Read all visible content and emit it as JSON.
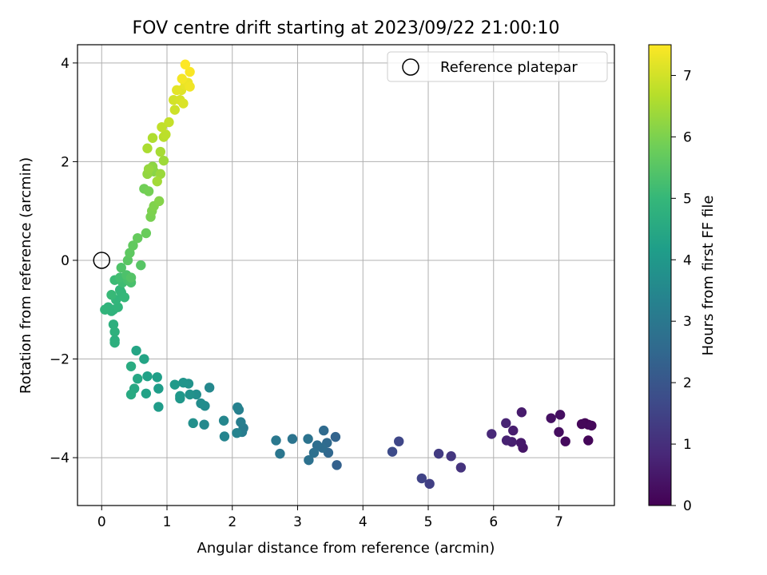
{
  "chart_data": {
    "type": "scatter",
    "title": "FOV centre drift starting at 2023/09/22 21:00:10",
    "xlabel": "Angular distance from reference (arcmin)",
    "ylabel": "Rotation from reference (arcmin)",
    "xlim": [
      -0.37,
      7.85
    ],
    "ylim": [
      -4.97,
      4.37
    ],
    "xticks": [
      0,
      1,
      2,
      3,
      4,
      5,
      6,
      7
    ],
    "xtick_labels": [
      "0",
      "1",
      "2",
      "3",
      "4",
      "5",
      "6",
      "7"
    ],
    "yticks": [
      4,
      2,
      0,
      -2,
      -4
    ],
    "ytick_labels": [
      "4",
      "2",
      "0",
      "−2",
      "−4"
    ],
    "grid": true,
    "legend": {
      "position": "top-right",
      "entries": [
        "Reference platepar"
      ]
    },
    "reference_point": {
      "x": 0,
      "y": 0
    },
    "colorbar": {
      "label": "Hours from first FF file",
      "range": [
        0,
        7.5
      ],
      "ticks": [
        0,
        1,
        2,
        3,
        4,
        5,
        6,
        7
      ],
      "tick_labels": [
        "0",
        "1",
        "2",
        "3",
        "4",
        "5",
        "6",
        "7"
      ],
      "colormap": [
        "#440154",
        "#482878",
        "#3e4a89",
        "#31688e",
        "#26828e",
        "#1f9e89",
        "#35b779",
        "#6ece58",
        "#b5de2b",
        "#fde725"
      ]
    },
    "series": [
      {
        "points": [
          [
            7.45,
            -3.33,
            0.05
          ],
          [
            7.4,
            -3.3,
            0.08
          ],
          [
            7.45,
            -3.65,
            0.1
          ],
          [
            7.35,
            -3.32,
            0.12
          ],
          [
            7.5,
            -3.35,
            0.15
          ],
          [
            7.1,
            -3.67,
            0.2
          ],
          [
            7.0,
            -3.48,
            0.25
          ],
          [
            7.02,
            -3.13,
            0.3
          ],
          [
            6.88,
            -3.2,
            0.35
          ],
          [
            6.45,
            -3.8,
            0.45
          ],
          [
            6.42,
            -3.7,
            0.5
          ],
          [
            6.43,
            -3.08,
            0.55
          ],
          [
            6.3,
            -3.45,
            0.6
          ],
          [
            6.28,
            -3.68,
            0.65
          ],
          [
            6.2,
            -3.65,
            0.7
          ],
          [
            6.19,
            -3.3,
            0.75
          ],
          [
            5.97,
            -3.52,
            0.85
          ],
          [
            5.5,
            -4.2,
            1.1
          ],
          [
            5.35,
            -3.97,
            1.2
          ],
          [
            5.16,
            -3.92,
            1.3
          ],
          [
            5.02,
            -4.53,
            1.4
          ],
          [
            4.9,
            -4.42,
            1.5
          ],
          [
            4.55,
            -3.67,
            1.6
          ],
          [
            4.45,
            -3.88,
            1.7
          ],
          [
            3.6,
            -4.15,
            2.3
          ],
          [
            3.58,
            -3.58,
            2.4
          ],
          [
            3.47,
            -3.9,
            2.5
          ],
          [
            3.45,
            -3.7,
            2.55
          ],
          [
            3.4,
            -3.45,
            2.6
          ],
          [
            3.38,
            -3.8,
            2.65
          ],
          [
            3.3,
            -3.75,
            2.7
          ],
          [
            3.25,
            -3.9,
            2.75
          ],
          [
            3.17,
            -4.05,
            2.8
          ],
          [
            3.16,
            -3.62,
            2.85
          ],
          [
            2.92,
            -3.62,
            2.9
          ],
          [
            2.73,
            -3.92,
            2.95
          ],
          [
            2.67,
            -3.65,
            3.0
          ],
          [
            2.17,
            -3.4,
            3.1
          ],
          [
            2.15,
            -3.48,
            3.15
          ],
          [
            2.13,
            -3.28,
            3.2
          ],
          [
            2.1,
            -3.03,
            3.25
          ],
          [
            2.08,
            -2.98,
            3.3
          ],
          [
            2.07,
            -3.5,
            3.35
          ],
          [
            1.88,
            -3.57,
            3.4
          ],
          [
            1.87,
            -3.25,
            3.45
          ],
          [
            1.65,
            -2.58,
            3.5
          ],
          [
            1.57,
            -3.33,
            3.55
          ],
          [
            1.58,
            -2.95,
            3.6
          ],
          [
            1.52,
            -2.9,
            3.65
          ],
          [
            1.45,
            -2.72,
            3.7
          ],
          [
            1.4,
            -3.3,
            3.75
          ],
          [
            1.35,
            -2.72,
            3.8
          ],
          [
            1.33,
            -2.5,
            3.85
          ],
          [
            1.25,
            -2.48,
            3.9
          ],
          [
            1.2,
            -2.8,
            3.95
          ],
          [
            1.2,
            -2.75,
            4.0
          ],
          [
            1.12,
            -2.52,
            4.05
          ],
          [
            0.87,
            -2.97,
            4.1
          ],
          [
            0.87,
            -2.6,
            4.15
          ],
          [
            0.85,
            -2.37,
            4.2
          ],
          [
            0.7,
            -2.35,
            4.25
          ],
          [
            0.68,
            -2.7,
            4.3
          ],
          [
            0.65,
            -2.0,
            4.35
          ],
          [
            0.53,
            -1.83,
            4.4
          ],
          [
            0.55,
            -2.4,
            4.45
          ],
          [
            0.5,
            -2.6,
            4.5
          ],
          [
            0.45,
            -2.72,
            4.55
          ],
          [
            0.45,
            -2.15,
            4.6
          ],
          [
            0.2,
            -1.62,
            4.7
          ],
          [
            0.2,
            -1.67,
            4.72
          ],
          [
            0.18,
            -1.3,
            4.75
          ],
          [
            0.2,
            -1.45,
            4.78
          ],
          [
            0.18,
            -1.0,
            4.8
          ],
          [
            0.15,
            -1.03,
            4.82
          ],
          [
            0.1,
            -0.95,
            4.85
          ],
          [
            0.05,
            -1.0,
            4.88
          ],
          [
            0.25,
            -0.95,
            4.9
          ],
          [
            0.22,
            -0.8,
            4.92
          ],
          [
            0.28,
            -0.6,
            4.95
          ],
          [
            0.3,
            -0.65,
            4.98
          ],
          [
            0.35,
            -0.75,
            5.0
          ],
          [
            0.15,
            -0.7,
            5.05
          ],
          [
            0.2,
            -0.4,
            5.1
          ],
          [
            0.32,
            -0.45,
            5.15
          ],
          [
            0.28,
            -0.35,
            5.2
          ],
          [
            0.4,
            -0.4,
            5.25
          ],
          [
            0.45,
            -0.45,
            5.3
          ],
          [
            0.38,
            -0.3,
            5.35
          ],
          [
            0.3,
            -0.15,
            5.4
          ],
          [
            0.45,
            -0.35,
            5.45
          ],
          [
            0.6,
            -0.1,
            5.5
          ],
          [
            0.4,
            0.0,
            5.55
          ],
          [
            0.43,
            0.15,
            5.6
          ],
          [
            0.48,
            0.3,
            5.65
          ],
          [
            0.55,
            0.45,
            5.7
          ],
          [
            0.68,
            0.55,
            5.75
          ],
          [
            0.65,
            1.45,
            5.85
          ],
          [
            0.72,
            1.4,
            5.9
          ],
          [
            0.75,
            0.88,
            5.95
          ],
          [
            0.77,
            1.0,
            6.0
          ],
          [
            0.8,
            1.1,
            6.05
          ],
          [
            0.88,
            1.2,
            6.1
          ],
          [
            0.8,
            1.8,
            6.15
          ],
          [
            0.78,
            1.9,
            6.2
          ],
          [
            0.7,
            1.75,
            6.25
          ],
          [
            0.72,
            1.85,
            6.3
          ],
          [
            0.9,
            1.75,
            6.35
          ],
          [
            0.95,
            2.02,
            6.4
          ],
          [
            0.85,
            1.6,
            6.45
          ],
          [
            0.9,
            2.2,
            6.5
          ],
          [
            0.7,
            2.27,
            6.55
          ],
          [
            0.78,
            2.48,
            6.6
          ],
          [
            0.95,
            2.5,
            6.7
          ],
          [
            0.98,
            2.55,
            6.75
          ],
          [
            0.92,
            2.7,
            6.8
          ],
          [
            1.03,
            2.8,
            6.85
          ],
          [
            1.12,
            3.05,
            6.95
          ],
          [
            1.1,
            3.25,
            7.0
          ],
          [
            1.2,
            3.25,
            7.05
          ],
          [
            1.25,
            3.18,
            7.1
          ],
          [
            1.22,
            3.45,
            7.15
          ],
          [
            1.15,
            3.45,
            7.2
          ],
          [
            1.28,
            3.55,
            7.25
          ],
          [
            1.32,
            3.6,
            7.3
          ],
          [
            1.35,
            3.52,
            7.35
          ],
          [
            1.23,
            3.68,
            7.4
          ],
          [
            1.35,
            3.82,
            7.45
          ],
          [
            1.28,
            3.97,
            7.5
          ]
        ]
      }
    ]
  }
}
